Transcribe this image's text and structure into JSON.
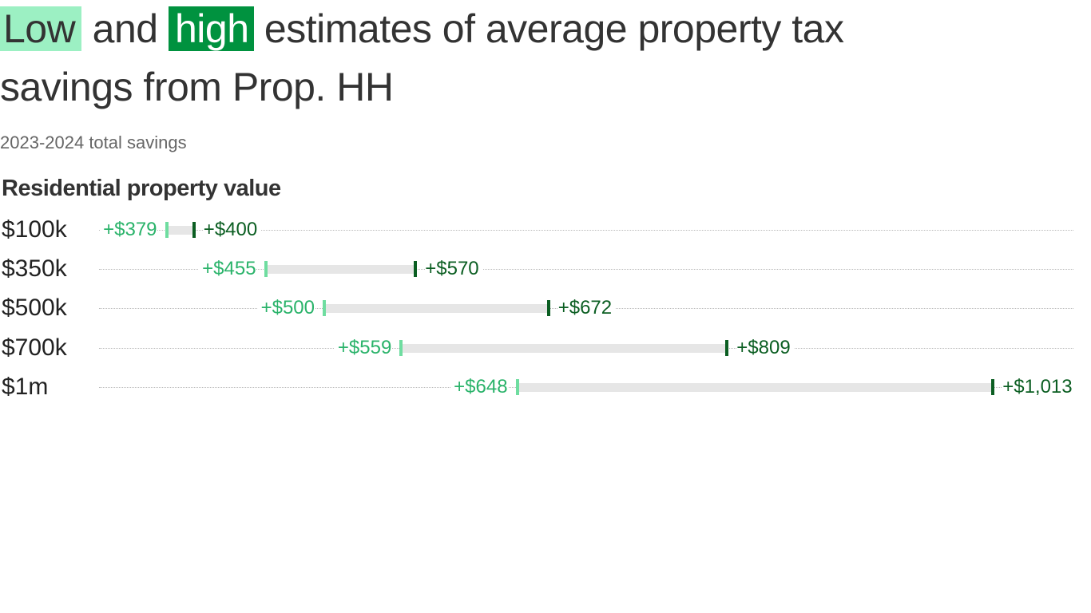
{
  "title": {
    "low_word": "Low",
    "and_word": "and",
    "high_word": "high",
    "rest_line1": "estimates of average property tax",
    "line2": "savings from Prop. HH"
  },
  "subtitle": "2023-2024 total savings",
  "axis_title": "Residential property value",
  "colors": {
    "low_highlight": "#9cf0c3",
    "high_highlight": "#00923f",
    "low_tick": "#6fdda0",
    "high_tick": "#0b5e22",
    "low_label": "#2ab36a",
    "high_label": "#0b5e22",
    "range_bar": "#e6e6e6"
  },
  "rows": [
    {
      "category": "$100k",
      "low_label": "+$379",
      "high_label": "+$400"
    },
    {
      "category": "$350k",
      "low_label": "+$455",
      "high_label": "+$570"
    },
    {
      "category": "$500k",
      "low_label": "+$500",
      "high_label": "+$672"
    },
    {
      "category": "$700k",
      "low_label": "+$559",
      "high_label": "+$809"
    },
    {
      "category": "$1m",
      "low_label": "+$648",
      "high_label": "+$1,013"
    }
  ],
  "chart_data": {
    "type": "bar",
    "subtype": "range (dumbbell)",
    "title": "Low and high estimates of average property tax savings from Prop. HH",
    "subtitle": "2023-2024 total savings",
    "ylabel": "Residential property value",
    "xlabel": "",
    "categories": [
      "$100k",
      "$350k",
      "$500k",
      "$700k",
      "$1m"
    ],
    "series": [
      {
        "name": "Low",
        "values": [
          379,
          455,
          500,
          559,
          648
        ]
      },
      {
        "name": "High",
        "values": [
          400,
          570,
          672,
          809,
          1013
        ]
      }
    ],
    "grid": "dotted horizontal guide lines per row",
    "legend": "embedded in title (Low = light green, high = dark green)"
  }
}
